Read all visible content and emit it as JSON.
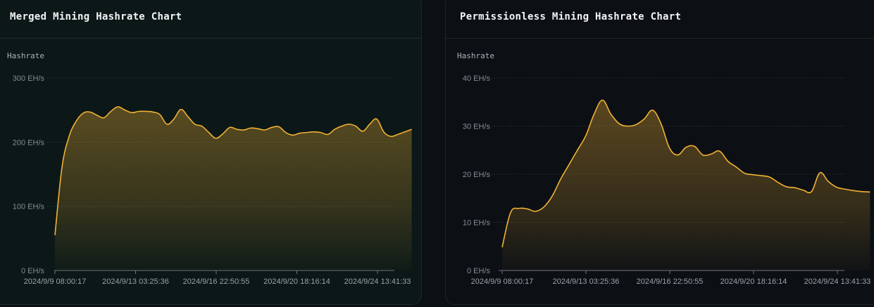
{
  "colors": {
    "series": "#f2b134",
    "panel_left_bg": "#0b1817",
    "panel_right_bg": "#0c1014"
  },
  "panels": [
    {
      "title": "Merged Mining Hashrate Chart"
    },
    {
      "title": "Permissionless Mining Hashrate Chart"
    }
  ],
  "chart_data": [
    {
      "type": "area",
      "title": "Merged Mining Hashrate Chart",
      "ylabel": "Hashrate",
      "xlabel": "",
      "ylim": [
        0,
        300
      ],
      "y_ticks": [
        "0 EH/s",
        "100 EH/s",
        "200 EH/s",
        "300 EH/s"
      ],
      "x_ticks": [
        "2024/9/9 08:00:17",
        "2024/9/13 03:25:36",
        "2024/9/16 22:50:55",
        "2024/9/20 18:16:14",
        "2024/9/24 13:41:33"
      ],
      "grid": true,
      "x_start": "2024/9/9 08:00:17",
      "x_end": "2024/9/26 04:30:00",
      "values": [
        55,
        160,
        208,
        232,
        245,
        247,
        242,
        238,
        248,
        255,
        250,
        246,
        248,
        248,
        247,
        243,
        228,
        236,
        251,
        240,
        228,
        225,
        215,
        206,
        213,
        223,
        220,
        219,
        222,
        221,
        219,
        223,
        224,
        215,
        211,
        214,
        215,
        216,
        215,
        212,
        220,
        225,
        228,
        225,
        217,
        228,
        236,
        216,
        209,
        212,
        216,
        220
      ]
    },
    {
      "type": "area",
      "title": "Permissionless Mining Hashrate Chart",
      "ylabel": "Hashrate",
      "xlabel": "",
      "ylim": [
        0,
        40
      ],
      "y_ticks": [
        "0 EH/s",
        "10 EH/s",
        "20 EH/s",
        "30 EH/s",
        "40 EH/s"
      ],
      "x_ticks": [
        "2024/9/9 08:00:17",
        "2024/9/13 03:25:36",
        "2024/9/16 22:50:55",
        "2024/9/20 18:16:14",
        "2024/9/24 13:41:33"
      ],
      "grid": true,
      "x_start": "2024/9/9 08:00:17",
      "x_end": "2024/9/26 01:20:00",
      "values": [
        4.8,
        12.0,
        12.9,
        12.8,
        12.3,
        13.2,
        15.5,
        19.0,
        22.0,
        25.0,
        28.0,
        32.5,
        35.4,
        32.5,
        30.5,
        30.0,
        30.3,
        31.5,
        33.3,
        30.5,
        25.5,
        24.0,
        25.6,
        25.8,
        24.0,
        24.2,
        24.8,
        22.7,
        21.5,
        20.2,
        19.9,
        19.7,
        19.4,
        18.3,
        17.4,
        17.2,
        16.7,
        16.4,
        20.3,
        18.5,
        17.3,
        16.9,
        16.6,
        16.4,
        16.3
      ]
    }
  ]
}
